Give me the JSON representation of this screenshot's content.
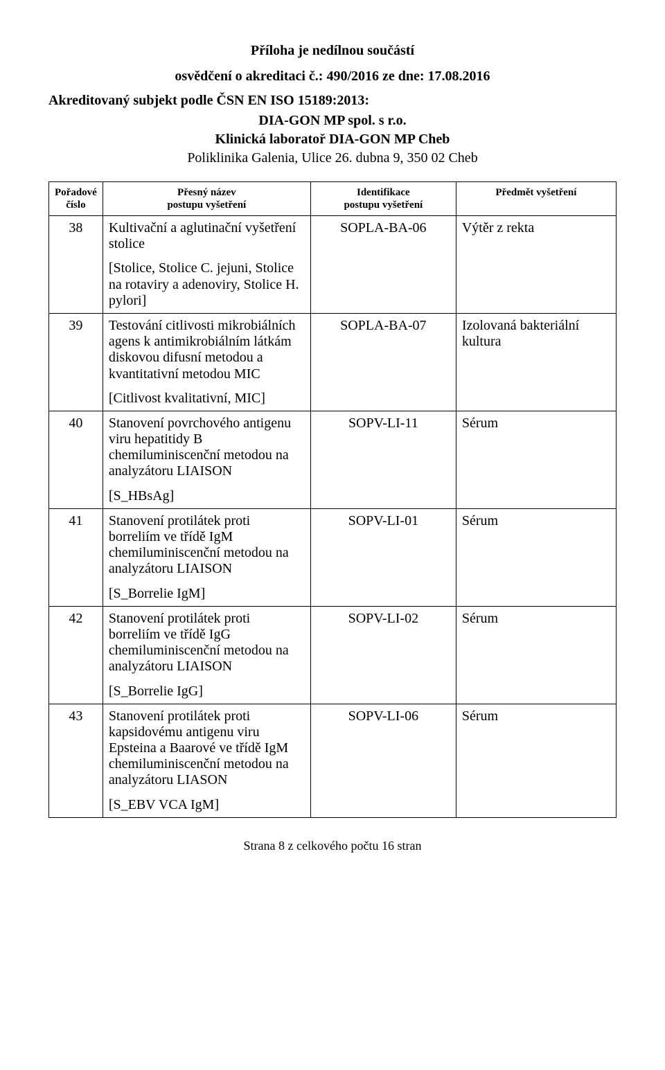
{
  "header": {
    "line1": "Příloha je nedílnou součástí",
    "line2": "osvědčení o akreditaci č.: 490/2016 ze dne: 17.08.2016",
    "line3": "Akreditovaný subjekt podle ČSN EN ISO 15189:2013:",
    "line4": "DIA-GON MP spol. s r.o.",
    "line5": "Klinická laboratoř DIA-GON MP Cheb",
    "line6": "Poliklinika Galenia, Ulice 26. dubna 9, 350 02 Cheb"
  },
  "columns": {
    "c1": "Pořadové\nčíslo",
    "c2": "Přesný název\npostupu vyšetření",
    "c3": "Identifikace\npostupu vyšetření",
    "c4": "Předmět vyšetření"
  },
  "rows": [
    {
      "num": "38",
      "desc_main": "Kultivační a aglutinační vyšetření stolice",
      "desc_bracket": "[Stolice, Stolice C. jejuni, Stolice na rotaviry a adenoviry, Stolice H. pylori]",
      "id": "SOPLA-BA-06",
      "subject": "Výtěr z rekta"
    },
    {
      "num": "39",
      "desc_main": "Testování citlivosti mikrobiálních agens k antimikrobiálním látkám diskovou difusní metodou a kvantitativní metodou MIC",
      "desc_bracket": "[Citlivost kvalitativní, MIC]",
      "id": "SOPLA-BA-07",
      "subject": "Izolovaná bakteriální kultura"
    },
    {
      "num": "40",
      "desc_main": "Stanovení povrchového antigenu viru hepatitidy B chemiluminiscenční metodou na analyzátoru LIAISON",
      "desc_bracket": "[S_HBsAg]",
      "id": "SOPV-LI-11",
      "subject": "Sérum"
    },
    {
      "num": "41",
      "desc_main": "Stanovení protilátek proti borreliím ve třídě IgM chemiluminiscenční metodou na analyzátoru LIAISON",
      "desc_bracket": "[S_Borrelie IgM]",
      "id": "SOPV-LI-01",
      "subject": "Sérum"
    },
    {
      "num": "42",
      "desc_main": "Stanovení protilátek proti borreliím ve třídě IgG chemiluminiscenční metodou na analyzátoru LIAISON",
      "desc_bracket": "[S_Borrelie IgG]",
      "id": "SOPV-LI-02",
      "subject": "Sérum"
    },
    {
      "num": "43",
      "desc_main": "Stanovení protilátek proti kapsidovému antigenu viru Epsteina a Baarové ve třídě IgM chemiluminiscenční metodou na analyzátoru LIASON",
      "desc_bracket": "[S_EBV VCA IgM]",
      "id": "SOPV-LI-06",
      "subject": "Sérum"
    }
  ],
  "footer": "Strana 8 z celkového počtu 16 stran"
}
